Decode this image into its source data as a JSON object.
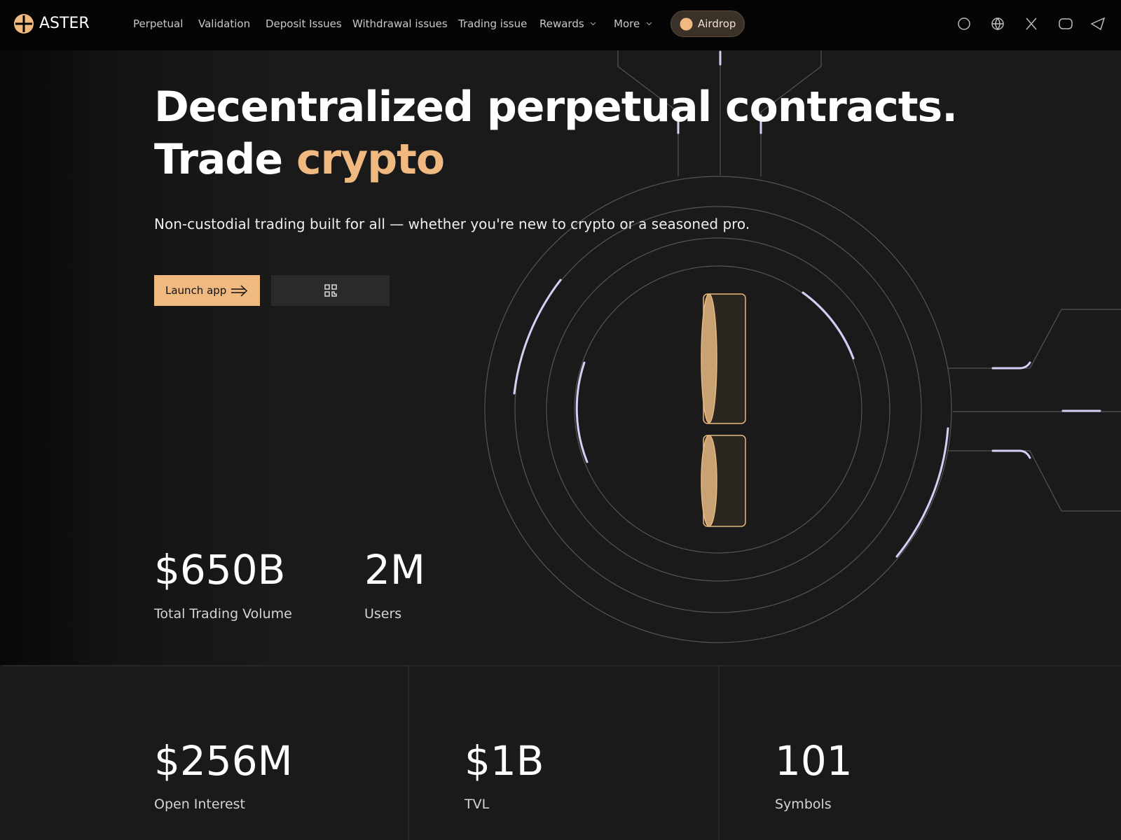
{
  "nav": {
    "brand": "ASTER",
    "links": [
      "Perpetual",
      "Validation",
      "Deposit Issues",
      "Withdrawal issues",
      "Trading issue"
    ],
    "dropdowns": [
      "Rewards",
      "More"
    ],
    "airdrop": "Airdrop"
  },
  "hero": {
    "title_line1": "Decentralized perpetual contracts.",
    "title_line2": "Trade",
    "title_highlight": "crypto",
    "subtitle": "Non-custodial trading built for all — whether you're new to crypto or a seasoned pro.",
    "launch_button": "Launch app"
  },
  "stats": [
    {
      "value": "$650B",
      "label": "Total Trading Volume"
    },
    {
      "value": "2M",
      "label": "Users"
    }
  ],
  "metrics": [
    {
      "value": "$256M",
      "label": "Open Interest"
    },
    {
      "value": "$1B",
      "label": "TVL"
    },
    {
      "value": "101",
      "label": "Symbols"
    }
  ]
}
